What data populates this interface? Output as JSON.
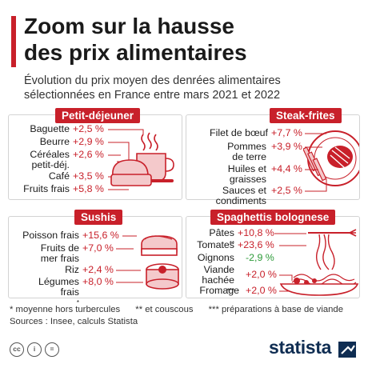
{
  "header": {
    "title_line1": "Zoom sur la hausse",
    "title_line2": "des prix alimentaires",
    "subtitle_line1": "Évolution du prix moyen des denrées alimentaires",
    "subtitle_line2": "sélectionnées en France entre mars 2021 et 2022"
  },
  "panels": {
    "petit_dejeuner": {
      "title": "Petit-déjeuner",
      "items": [
        {
          "label": [
            "Baguette"
          ],
          "value": "+2,5 %"
        },
        {
          "label": [
            "Beurre"
          ],
          "value": "+2,9 %"
        },
        {
          "label": [
            "Céréales",
            "petit-déj."
          ],
          "value": "+2,6 %"
        },
        {
          "label": [
            "Café"
          ],
          "value": "+3,5 %"
        },
        {
          "label": [
            "Fruits frais"
          ],
          "value": "+5,8 %"
        }
      ]
    },
    "steak_frites": {
      "title": "Steak-frites",
      "items": [
        {
          "label": [
            "Filet de bœuf"
          ],
          "value": "+7,7 %"
        },
        {
          "label": [
            "Pommes",
            "de terre"
          ],
          "value": "+3,9 %"
        },
        {
          "label": [
            "Huiles et",
            "graisses"
          ],
          "value": "+4,4 %"
        },
        {
          "label": [
            "Sauces et",
            "condiments"
          ],
          "value": "+2,5 %"
        }
      ]
    },
    "sushis": {
      "title": "Sushis",
      "items": [
        {
          "label": [
            "Poisson frais"
          ],
          "value": "+15,6 %"
        },
        {
          "label": [
            "Fruits de",
            "mer frais"
          ],
          "value": "+7,0 %"
        },
        {
          "label": [
            "Riz"
          ],
          "value": "+2,4 %"
        },
        {
          "label": [
            "Légumes",
            "frais"
          ],
          "sup": "*",
          "value": "+8,0 %"
        }
      ]
    },
    "spaghettis": {
      "title": "Spaghettis bolognese",
      "items": [
        {
          "label": [
            "Pâtes"
          ],
          "sup": "**",
          "value": "+10,8 %"
        },
        {
          "label": [
            "Tomates"
          ],
          "value": "+23,6 %"
        },
        {
          "label": [
            "Oignons"
          ],
          "value": "-2,9 %"
        },
        {
          "label": [
            "Viande",
            "hachée"
          ],
          "sup": "***",
          "value": "+2,0 %"
        },
        {
          "label": [
            "Fromage"
          ],
          "value": "+2,0 %"
        }
      ]
    }
  },
  "footer": {
    "footnote1": "* moyenne hors turbercules",
    "footnote2": "** et couscous",
    "footnote3": "*** préparations à base de viande",
    "sources": "Sources : Insee, calculs Statista",
    "cc_icons": [
      "cc-icon",
      "person-icon",
      "equals-icon"
    ],
    "cc_text": [
      "cc",
      "i",
      "="
    ],
    "brand": "statista"
  },
  "colors": {
    "accent_red": "#c8202a",
    "decrease_green": "#2e9b3a",
    "brand_navy": "#0f2d52",
    "panel_border": "#d3d3d3"
  }
}
